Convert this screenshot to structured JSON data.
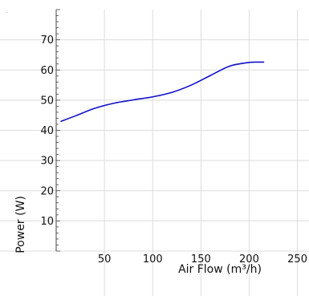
{
  "chart_data": {
    "type": "line",
    "title": "",
    "corner_mark": ".",
    "xlabel": "Air Flow (m³/h)",
    "ylabel": "Power (W)",
    "xlim": [
      0,
      262
    ],
    "ylim": [
      0,
      80
    ],
    "x_ticks": [
      50,
      100,
      150,
      200,
      250
    ],
    "y_ticks": [
      10,
      20,
      30,
      40,
      50,
      60,
      70
    ],
    "grid": true,
    "legend": "none",
    "series": [
      {
        "color": "#1010c8",
        "x": [
          5,
          20,
          40,
          60,
          80,
          100,
          120,
          140,
          160,
          180,
          200,
          210,
          215
        ],
        "y": [
          43.0,
          44.8,
          47.3,
          49.0,
          50.1,
          51.1,
          52.6,
          55.0,
          58.2,
          61.3,
          62.5,
          62.6,
          62.6
        ]
      }
    ]
  }
}
